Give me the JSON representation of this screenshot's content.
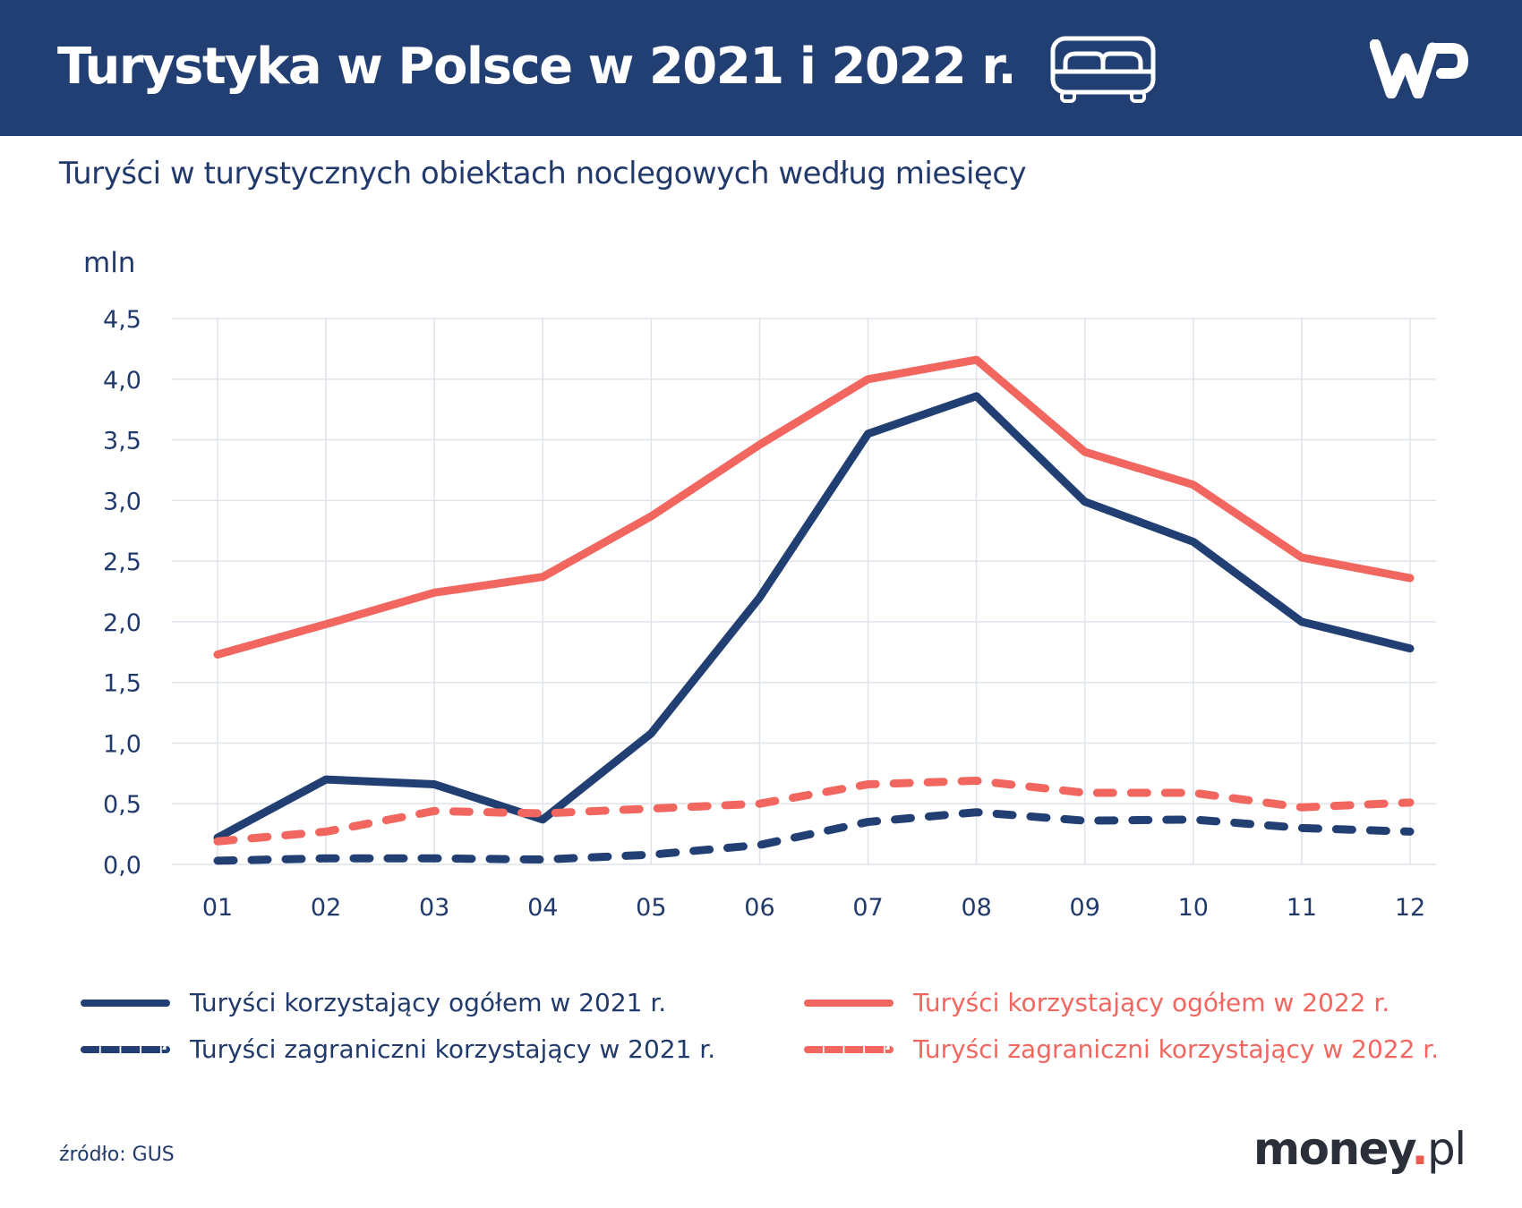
{
  "header": {
    "title": "Turystyka w Polsce w 2021 i 2022 r.",
    "icon": "bed-icon",
    "logo": "WP"
  },
  "subtitle": "Turyści w turystycznych obiektach noclegowych według miesięcy",
  "source": "źródło: GUS",
  "brand": {
    "name": "money",
    "dot": ".",
    "suffix": "pl"
  },
  "colors": {
    "navy": "#223f73",
    "coral": "#f26660"
  },
  "chart_data": {
    "type": "line",
    "ylabel": "mln",
    "ylim": [
      0,
      4.5
    ],
    "yticks": [
      "0,0",
      "0,5",
      "1,0",
      "1,5",
      "2,0",
      "2,5",
      "3,0",
      "3,5",
      "4,0",
      "4,5"
    ],
    "categories": [
      "01",
      "02",
      "03",
      "04",
      "05",
      "06",
      "07",
      "08",
      "09",
      "10",
      "11",
      "12"
    ],
    "grid": true,
    "legend_position": "bottom",
    "series": [
      {
        "name": "Turyści korzystający ogółem w 2021 r.",
        "color": "#223f73",
        "style": "solid",
        "values": [
          0.22,
          0.7,
          0.66,
          0.37,
          1.08,
          2.2,
          3.55,
          3.86,
          2.99,
          2.66,
          2.0,
          1.78
        ]
      },
      {
        "name": "Turyści korzystający ogółem w 2022 r.",
        "color": "#f26660",
        "style": "solid",
        "values": [
          1.73,
          1.98,
          2.24,
          2.37,
          2.87,
          3.46,
          4.0,
          4.16,
          3.4,
          3.13,
          2.53,
          2.36
        ]
      },
      {
        "name": "Turyści zagraniczni korzystający w 2021 r.",
        "color": "#223f73",
        "style": "dashed",
        "values": [
          0.03,
          0.05,
          0.05,
          0.04,
          0.08,
          0.16,
          0.35,
          0.43,
          0.36,
          0.37,
          0.3,
          0.27
        ]
      },
      {
        "name": "Turyści zagraniczni korzystający w 2022 r.",
        "color": "#f26660",
        "style": "dashed",
        "values": [
          0.19,
          0.27,
          0.44,
          0.42,
          0.46,
          0.5,
          0.66,
          0.69,
          0.59,
          0.59,
          0.47,
          0.51
        ]
      }
    ]
  }
}
